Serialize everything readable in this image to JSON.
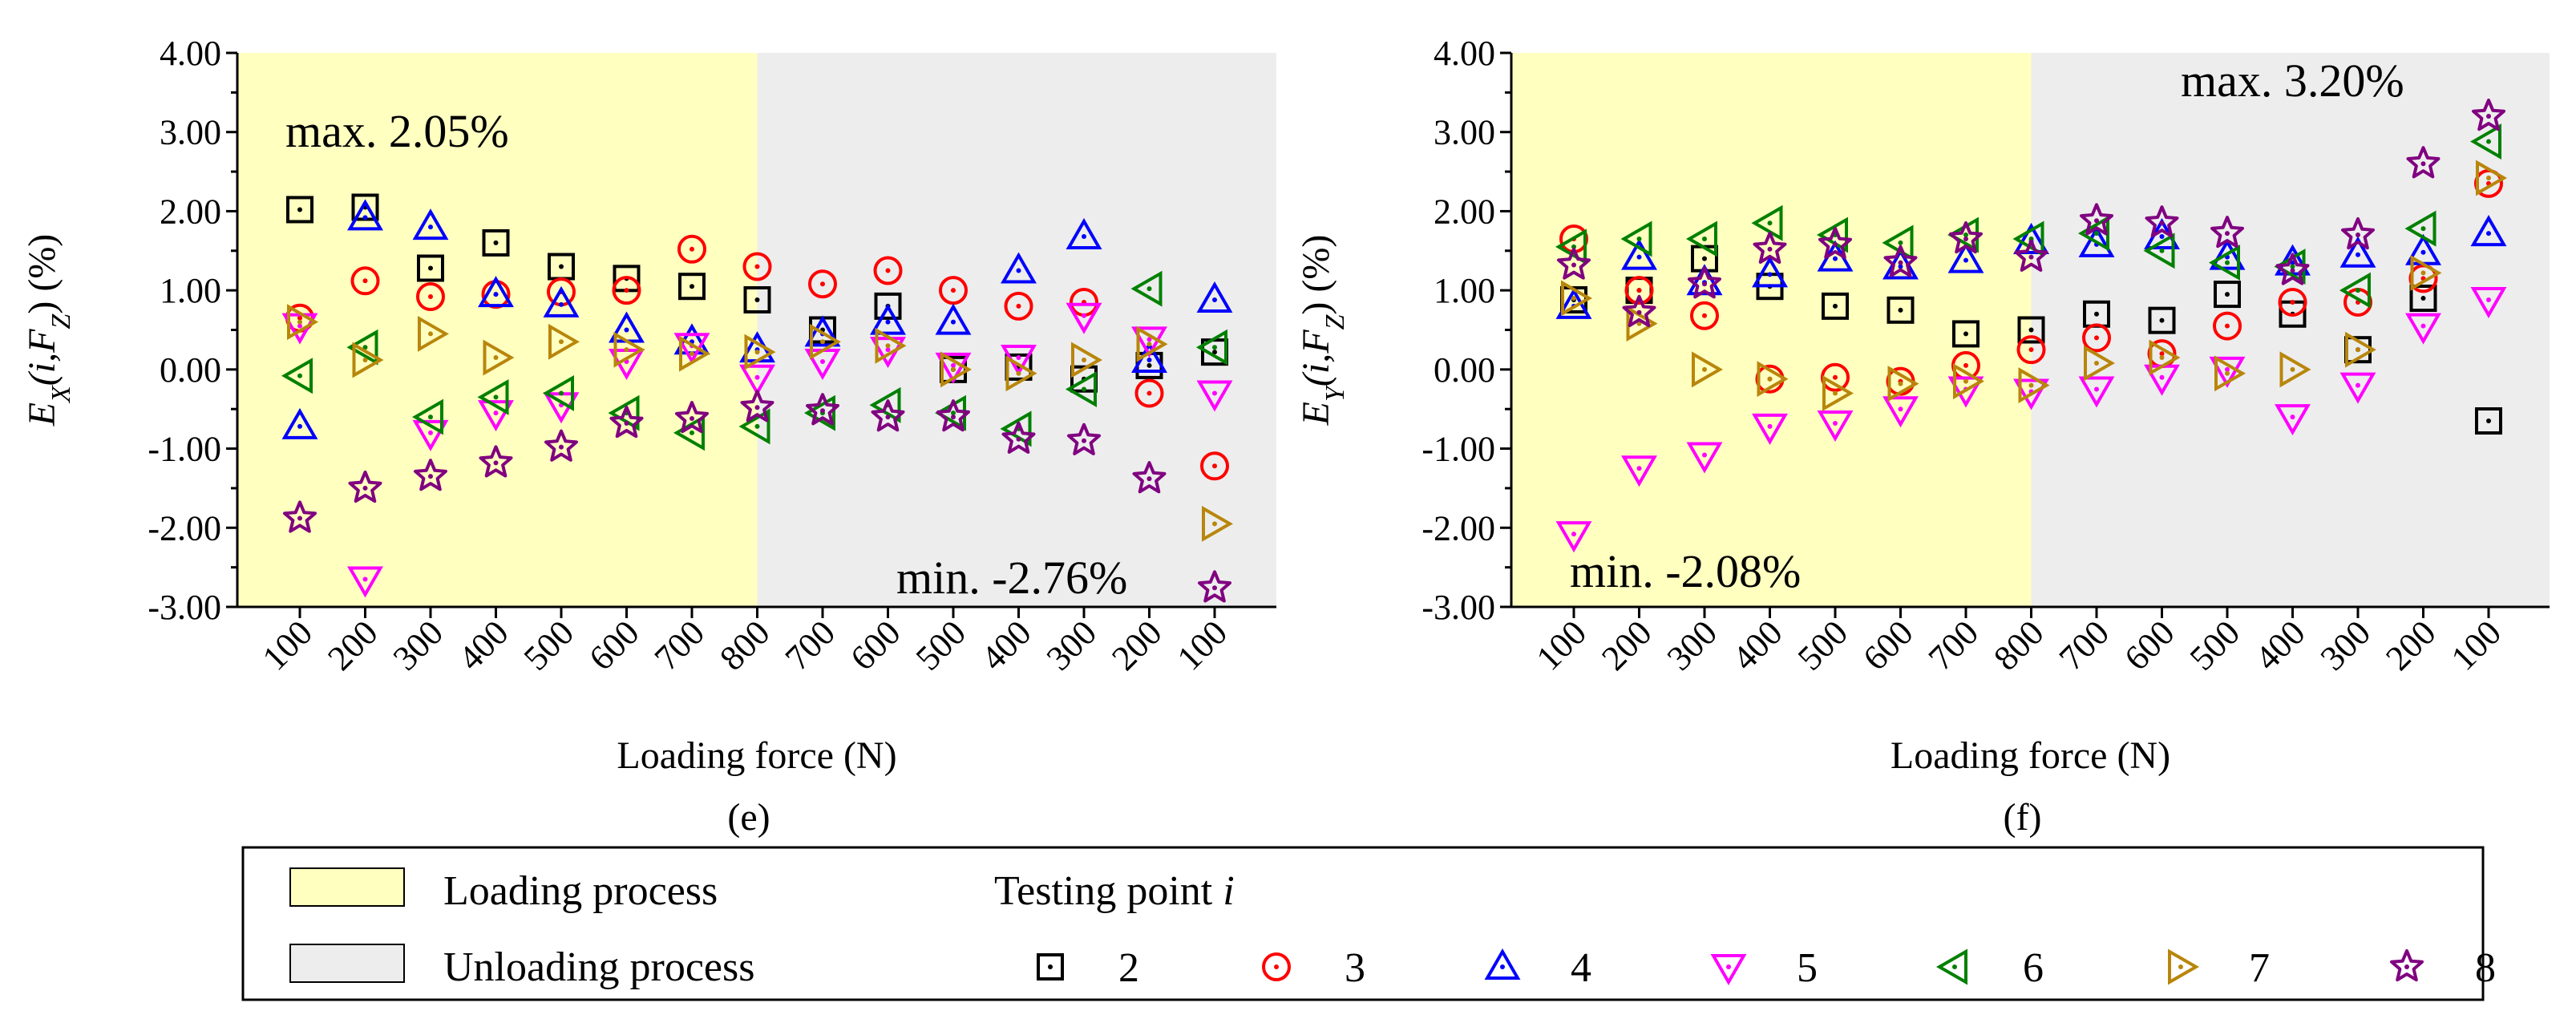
{
  "chart_data": [
    {
      "id": "e",
      "type": "scatter",
      "panel_label": "(e)",
      "xlabel": "Loading force (N)",
      "ylabel_main": "E",
      "ylabel_sub": "X",
      "ylabel_args": "(i,F",
      "ylabel_args_sub": "Z",
      "ylabel_tail": ") (%)",
      "categories": [
        "100",
        "200",
        "300",
        "400",
        "500",
        "600",
        "700",
        "800",
        "700",
        "600",
        "500",
        "400",
        "300",
        "200",
        "100"
      ],
      "ylim": [
        -3,
        4
      ],
      "yticks": [
        "4.00",
        "3.00",
        "2.00",
        "1.00",
        "0.00",
        "-1.00",
        "-2.00",
        "-3.00"
      ],
      "shading": [
        {
          "label": "Loading process",
          "from_index": 0,
          "to_index": 7
        },
        {
          "label": "Unloading process",
          "from_index": 7,
          "to_index": 14
        }
      ],
      "annotations": {
        "max": "max. 2.05%",
        "min": "min. -2.76%"
      },
      "series": [
        {
          "name": "2",
          "values": [
            2.02,
            2.05,
            1.28,
            1.6,
            1.3,
            1.15,
            1.05,
            0.88,
            0.5,
            0.8,
            0.0,
            0.03,
            -0.12,
            0.05,
            0.22
          ]
        },
        {
          "name": "3",
          "values": [
            0.65,
            1.12,
            0.92,
            0.95,
            0.98,
            1.0,
            1.52,
            1.3,
            1.08,
            1.25,
            1.0,
            0.8,
            0.85,
            -0.3,
            -1.22
          ]
        },
        {
          "name": "4",
          "values": [
            -0.72,
            1.92,
            1.8,
            0.95,
            0.82,
            0.5,
            0.35,
            0.25,
            0.45,
            0.6,
            0.6,
            1.25,
            1.68,
            0.12,
            0.88
          ]
        },
        {
          "name": "5",
          "values": [
            0.55,
            -2.65,
            -0.8,
            -0.55,
            -0.45,
            0.1,
            0.3,
            -0.1,
            0.1,
            0.25,
            0.05,
            0.15,
            0.68,
            0.38,
            -0.3
          ]
        },
        {
          "name": "6",
          "values": [
            -0.08,
            0.28,
            -0.6,
            -0.35,
            -0.3,
            -0.55,
            -0.8,
            -0.72,
            -0.55,
            -0.45,
            -0.55,
            -0.75,
            -0.25,
            1.02,
            0.28
          ]
        },
        {
          "name": "7",
          "values": [
            0.6,
            0.12,
            0.45,
            0.15,
            0.35,
            0.25,
            0.2,
            0.22,
            0.35,
            0.3,
            0.0,
            -0.05,
            0.12,
            0.32,
            -1.95
          ]
        },
        {
          "name": "8",
          "values": [
            -1.88,
            -1.5,
            -1.35,
            -1.18,
            -0.98,
            -0.68,
            -0.62,
            -0.48,
            -0.52,
            -0.6,
            -0.6,
            -0.88,
            -0.9,
            -1.38,
            -2.76
          ]
        }
      ]
    },
    {
      "id": "f",
      "type": "scatter",
      "panel_label": "(f)",
      "xlabel": "Loading force (N)",
      "ylabel_main": "E",
      "ylabel_sub": "Y",
      "ylabel_args": "(i,F",
      "ylabel_args_sub": "Z",
      "ylabel_tail": ") (%)",
      "categories": [
        "100",
        "200",
        "300",
        "400",
        "500",
        "600",
        "700",
        "800",
        "700",
        "600",
        "500",
        "400",
        "300",
        "200",
        "100"
      ],
      "ylim": [
        -3,
        4
      ],
      "yticks": [
        "4.00",
        "3.00",
        "2.00",
        "1.00",
        "0.00",
        "-1.00",
        "-2.00",
        "-3.00"
      ],
      "shading": [
        {
          "label": "Loading process",
          "from_index": 0,
          "to_index": 7
        },
        {
          "label": "Unloading process",
          "from_index": 7,
          "to_index": 14
        }
      ],
      "annotations": {
        "max": "max. 3.20%",
        "min": "min. -2.08%"
      },
      "series": [
        {
          "name": "2",
          "values": [
            0.88,
            1.0,
            1.4,
            1.05,
            0.8,
            0.75,
            0.45,
            0.5,
            0.7,
            0.62,
            0.95,
            0.7,
            0.25,
            0.9,
            -0.65
          ]
        },
        {
          "name": "3",
          "values": [
            1.65,
            1.0,
            0.68,
            -0.12,
            -0.1,
            -0.15,
            0.05,
            0.25,
            0.4,
            0.2,
            0.55,
            0.85,
            0.85,
            1.15,
            2.35
          ]
        },
        {
          "name": "4",
          "values": [
            0.8,
            1.42,
            1.1,
            1.2,
            1.4,
            1.3,
            1.38,
            1.62,
            1.58,
            1.68,
            1.42,
            1.35,
            1.45,
            1.48,
            1.72
          ]
        },
        {
          "name": "5",
          "values": [
            -2.08,
            -1.25,
            -1.08,
            -0.72,
            -0.68,
            -0.5,
            -0.25,
            -0.28,
            -0.25,
            -0.1,
            0.0,
            -0.6,
            -0.2,
            0.55,
            0.88
          ]
        },
        {
          "name": "6",
          "values": [
            1.55,
            1.65,
            1.65,
            1.85,
            1.7,
            1.6,
            1.7,
            1.65,
            1.72,
            1.5,
            1.35,
            1.3,
            1.0,
            1.78,
            2.88
          ]
        },
        {
          "name": "7",
          "values": [
            0.9,
            0.58,
            0.0,
            -0.12,
            -0.3,
            -0.18,
            -0.15,
            -0.2,
            0.08,
            0.15,
            -0.05,
            0.0,
            0.25,
            1.22,
            2.42
          ]
        },
        {
          "name": "8",
          "values": [
            1.32,
            0.72,
            1.08,
            1.52,
            1.58,
            1.35,
            1.65,
            1.42,
            1.88,
            1.85,
            1.72,
            1.25,
            1.7,
            2.6,
            3.2
          ]
        }
      ]
    }
  ],
  "legend": {
    "loading_label": "Loading process",
    "unloading_label": "Unloading process",
    "testing_point_label": "Testing point ",
    "testing_point_var": "i",
    "items": [
      "2",
      "3",
      "4",
      "5",
      "6",
      "7",
      "8"
    ]
  },
  "style": {
    "loading_color": "#ffffc0",
    "unloading_color": "#ededed",
    "series_colors": [
      "#000000",
      "#ff0000",
      "#0000ff",
      "#ff00ff",
      "#008000",
      "#b8860b",
      "#800080"
    ],
    "series_markers": [
      "square",
      "circle",
      "triangle-up",
      "triangle-down",
      "triangle-left",
      "triangle-right",
      "star"
    ]
  }
}
